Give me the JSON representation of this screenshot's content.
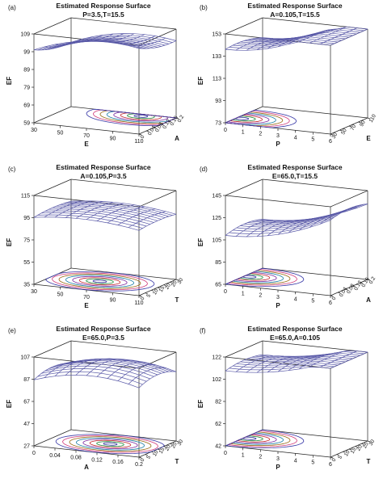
{
  "chart_data": [
    {
      "type": "surface3d",
      "panel_label": "(a)",
      "title": "Estimated Response Surface",
      "subtitle": "P=3.5,T=15.5",
      "zlabel": "EF",
      "xlabel": "E",
      "ylabel": "A",
      "x_ticks": [
        "30",
        "50",
        "70",
        "90",
        "110"
      ],
      "y_ticks": [
        "0",
        "0.04",
        "0.08",
        "0.12",
        "0.16",
        "0.2"
      ],
      "z_ticks": [
        "59",
        "69",
        "79",
        "89",
        "99",
        "109"
      ],
      "xlim": [
        30,
        110
      ],
      "ylim": [
        0,
        0.2
      ],
      "zlim": [
        59,
        109
      ],
      "surface_shape": {
        "z_min": 78,
        "z_max": 104,
        "curv_x": 18,
        "curv_y": -6,
        "peak_x": 0.7,
        "peak_y": 0.9
      },
      "contours": 8
    },
    {
      "type": "surface3d",
      "panel_label": "(b)",
      "title": "Estimated Response Surface",
      "subtitle": "A=0.105,T=15.5",
      "zlabel": "EF",
      "xlabel": "P",
      "ylabel": "E",
      "x_ticks": [
        "0",
        "1",
        "2",
        "3",
        "4",
        "5",
        "6"
      ],
      "y_ticks": [
        "30",
        "50",
        "70",
        "90",
        "110"
      ],
      "z_ticks": [
        "73",
        "93",
        "113",
        "133",
        "153"
      ],
      "xlim": [
        0,
        6
      ],
      "ylim": [
        30,
        110
      ],
      "zlim": [
        73,
        153
      ],
      "surface_shape": {
        "z_min": 76,
        "z_max": 140,
        "curv_x": -30,
        "curv_y": 10,
        "peak_x": 0.0,
        "peak_y": 0.3
      },
      "contours": 8
    },
    {
      "type": "surface3d",
      "panel_label": "(c)",
      "title": "Estimated Response Surface",
      "subtitle": "A=0.105,P=3.5",
      "zlabel": "EF",
      "xlabel": "E",
      "ylabel": "T",
      "x_ticks": [
        "30",
        "50",
        "70",
        "90",
        "110"
      ],
      "y_ticks": [
        "0",
        "5",
        "10",
        "15",
        "20",
        "25",
        "30"
      ],
      "z_ticks": [
        "35",
        "55",
        "75",
        "95",
        "115"
      ],
      "xlim": [
        30,
        110
      ],
      "ylim": [
        0,
        30
      ],
      "zlim": [
        35,
        115
      ],
      "surface_shape": {
        "z_min": 70,
        "z_max": 100,
        "curv_x": 16,
        "curv_y": 6,
        "peak_x": 0.45,
        "peak_y": 0.5
      },
      "contours": 8
    },
    {
      "type": "surface3d",
      "panel_label": "(d)",
      "title": "Estimated Response Surface",
      "subtitle": "E=65.0,T=15.5",
      "zlabel": "EF",
      "xlabel": "P",
      "ylabel": "A",
      "x_ticks": [
        "0",
        "1",
        "2",
        "3",
        "4",
        "5",
        "6"
      ],
      "y_ticks": [
        "0",
        "0.04",
        "0.08",
        "0.12",
        "0.16",
        "0.2"
      ],
      "z_ticks": [
        "65",
        "85",
        "105",
        "125",
        "145"
      ],
      "xlim": [
        0,
        6
      ],
      "ylim": [
        0,
        0.2
      ],
      "zlim": [
        65,
        145
      ],
      "surface_shape": {
        "z_min": 70,
        "z_max": 112,
        "curv_x": -24,
        "curv_y": 12,
        "peak_x": 0.0,
        "peak_y": 0.5
      },
      "contours": 8
    },
    {
      "type": "surface3d",
      "panel_label": "(e)",
      "title": "Estimated Response Surface",
      "subtitle": "E=65.0,P=3.5",
      "zlabel": "EF",
      "xlabel": "A",
      "ylabel": "T",
      "x_ticks": [
        "0",
        "0.04",
        "0.08",
        "0.12",
        "0.16",
        "0.2"
      ],
      "y_ticks": [
        "0",
        "5",
        "10",
        "15",
        "20",
        "25",
        "30"
      ],
      "z_ticks": [
        "27",
        "47",
        "67",
        "87",
        "107"
      ],
      "xlim": [
        0,
        0.2
      ],
      "ylim": [
        0,
        30
      ],
      "zlim": [
        27,
        107
      ],
      "surface_shape": {
        "z_min": 50,
        "z_max": 100,
        "curv_x": 30,
        "curv_y": 18,
        "peak_x": 0.55,
        "peak_y": 0.5
      },
      "contours": 8
    },
    {
      "type": "surface3d",
      "panel_label": "(f)",
      "title": "Estimated Response Surface",
      "subtitle": "E=65.0,A=0.105",
      "zlabel": "EF",
      "xlabel": "P",
      "ylabel": "T",
      "x_ticks": [
        "0",
        "1",
        "2",
        "3",
        "4",
        "5",
        "6"
      ],
      "y_ticks": [
        "0",
        "5",
        "10",
        "15",
        "20",
        "25",
        "30"
      ],
      "z_ticks": [
        "42",
        "62",
        "82",
        "102",
        "122"
      ],
      "xlim": [
        0,
        6
      ],
      "ylim": [
        0,
        30
      ],
      "zlim": [
        42,
        122
      ],
      "surface_shape": {
        "z_min": 72,
        "z_max": 112,
        "curv_x": -18,
        "curv_y": 10,
        "peak_x": 0.0,
        "peak_y": 0.5
      },
      "contours": 8
    }
  ]
}
